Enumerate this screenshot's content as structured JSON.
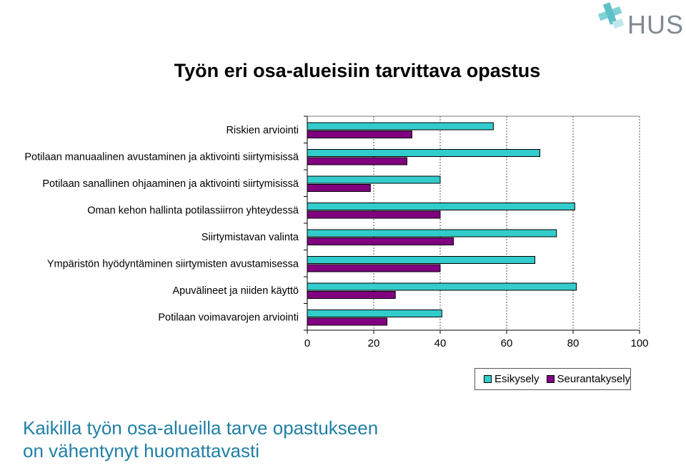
{
  "logo": {
    "text": "HUS",
    "icon": "hus-cross-logo-icon"
  },
  "chart_data": {
    "type": "bar",
    "orientation": "horizontal",
    "title": "Työn eri osa-alueisiin tarvittava opastus",
    "categories": [
      "Riskien arviointi",
      "Potilaan manuaalinen avustaminen ja aktivointi siirtymisissä",
      "Potilaan sanallinen ohjaaminen ja aktivointi siirtymisissä",
      "Oman kehon hallinta potilassiirron yhteydessä",
      "Siirtymistavan valinta",
      "Ympäristön hyödyntäminen siirtymisten avustamisessa",
      "Apuvälineet ja niiden käyttö",
      "Potilaan voimavarojen arviointi"
    ],
    "series": [
      {
        "name": "Esikysely",
        "color": "#33cccc",
        "values": [
          56,
          70,
          40,
          80.5,
          75,
          68.5,
          81,
          40.5
        ]
      },
      {
        "name": "Seurantakysely",
        "color": "#800080",
        "values": [
          31.5,
          30,
          19,
          40,
          44,
          40,
          26.5,
          24
        ]
      }
    ],
    "xlim": [
      0,
      100
    ],
    "xticks": [
      "0",
      "20",
      "40",
      "60",
      "80",
      "100"
    ],
    "grid": "vertical-dashed",
    "legend_position": "bottom-right"
  },
  "caption": {
    "line1": "Kaikilla työn osa-alueilla tarve opastukseen",
    "line2": "on vähentynyt huomattavasti"
  }
}
